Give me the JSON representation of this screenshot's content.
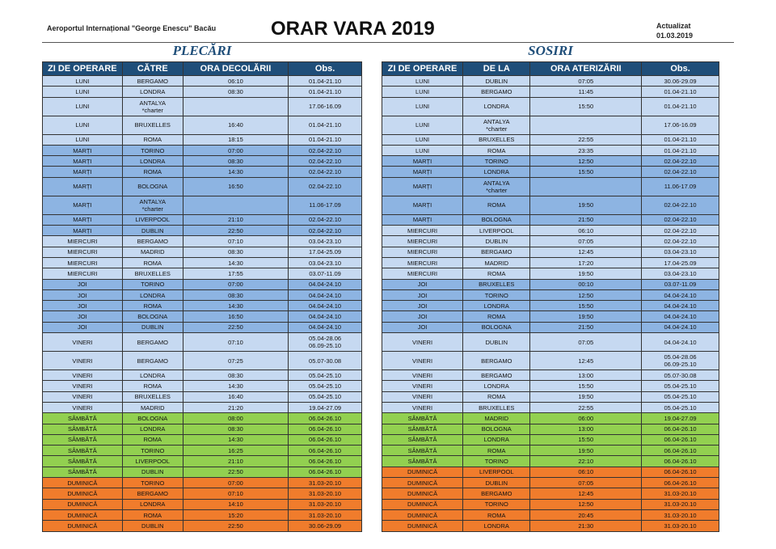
{
  "header": {
    "airport": "Aeroportul Internațional \"George Enescu\" Bacău",
    "title": "ORAR VARA 2019",
    "updated_label": "Actualizat",
    "updated_date": "01.03.2019"
  },
  "departures": {
    "title": "PLECĂRI",
    "columns": [
      "ZI DE OPERARE",
      "CĂTRE",
      "ORA DECOLĂRII",
      "Obs."
    ],
    "rows": [
      [
        "LUNI",
        "BERGAMO",
        "06:10",
        "01.04-21.10"
      ],
      [
        "LUNI",
        "LONDRA",
        "08:30",
        "01.04-21.10"
      ],
      [
        "LUNI",
        "ANTALYA\n*charter",
        null,
        "17.06-16.09"
      ],
      [
        "LUNI",
        "BRUXELLES",
        "16:40",
        "01.04-21.10"
      ],
      [
        "LUNI",
        "ROMA",
        "18:15",
        "01.04-21.10"
      ],
      [
        "MARȚI",
        "TORINO",
        "07:00",
        "02.04-22.10"
      ],
      [
        "MARȚI",
        "LONDRA",
        "08:30",
        "02.04-22.10"
      ],
      [
        "MARȚI",
        "ROMA",
        "14:30",
        "02.04-22.10"
      ],
      [
        "MARȚI",
        "BOLOGNA",
        "16:50",
        "02.04-22.10"
      ],
      [
        "MARȚI",
        "ANTALYA\n*charter",
        null,
        "11.06-17.09"
      ],
      [
        "MARȚI",
        "LIVERPOOL",
        "21:10",
        "02.04-22.10"
      ],
      [
        "MARȚI",
        "DUBLIN",
        "22:50",
        "02.04-22.10"
      ],
      [
        "MIERCURI",
        "BERGAMO",
        "07:10",
        "03.04-23.10"
      ],
      [
        "MIERCURI",
        "MADRID",
        "08:30",
        "17.04-25.09"
      ],
      [
        "MIERCURI",
        "ROMA",
        "14:30",
        "03.04-23.10"
      ],
      [
        "MIERCURI",
        "BRUXELLES",
        "17:55",
        "03.07-11.09"
      ],
      [
        "JOI",
        "TORINO",
        "07:00",
        "04.04-24.10"
      ],
      [
        "JOI",
        "LONDRA",
        "08:30",
        "04.04-24.10"
      ],
      [
        "JOI",
        "ROMA",
        "14:30",
        "04.04-24.10"
      ],
      [
        "JOI",
        "BOLOGNA",
        "16:50",
        "04.04-24.10"
      ],
      [
        "JOI",
        "DUBLIN",
        "22:50",
        "04.04-24.10"
      ],
      [
        "VINERI",
        "BERGAMO",
        "07:10",
        "05.04-28.06\n06.09-25.10"
      ],
      [
        "VINERI",
        "BERGAMO",
        "07:25",
        "05.07-30.08"
      ],
      [
        "VINERI",
        "LONDRA",
        "08:30",
        "05.04-25.10"
      ],
      [
        "VINERI",
        "ROMA",
        "14:30",
        "05.04-25.10"
      ],
      [
        "VINERI",
        "BRUXELLES",
        "16:40",
        "05.04-25.10"
      ],
      [
        "VINERI",
        "MADRID",
        "21:20",
        "19.04-27.09"
      ],
      [
        "SÂMBĂTĂ",
        "BOLOGNA",
        "08:00",
        "06.04-26.10"
      ],
      [
        "SÂMBĂTĂ",
        "LONDRA",
        "08:30",
        "06.04-26.10"
      ],
      [
        "SÂMBĂTĂ",
        "ROMA",
        "14:30",
        "06.04-26.10"
      ],
      [
        "SÂMBĂTĂ",
        "TORINO",
        "16:25",
        "06.04-26.10"
      ],
      [
        "SÂMBĂTĂ",
        "LIVERPOOL",
        "21:10",
        "06.04-26.10"
      ],
      [
        "SÂMBĂTĂ",
        "DUBLIN",
        "22:50",
        "06.04-26.10"
      ],
      [
        "DUMINICĂ",
        "TORINO",
        "07:00",
        "31.03-20.10"
      ],
      [
        "DUMINICĂ",
        "BERGAMO",
        "07:10",
        "31.03-20.10"
      ],
      [
        "DUMINICĂ",
        "LONDRA",
        "14:10",
        "31.03-20.10"
      ],
      [
        "DUMINICĂ",
        "ROMA",
        "15:20",
        "31.03-20.10"
      ],
      [
        "DUMINICĂ",
        "DUBLIN",
        "22:50",
        "30.06-29.09"
      ]
    ]
  },
  "arrivals": {
    "title": "SOSIRI",
    "columns": [
      "ZI DE OPERARE",
      "DE LA",
      "ORA ATERIZĂRII",
      "Obs."
    ],
    "rows": [
      [
        "LUNI",
        "DUBLIN",
        "07:05",
        "30.06-29.09"
      ],
      [
        "LUNI",
        "BERGAMO",
        "11:45",
        "01.04-21.10"
      ],
      [
        "LUNI",
        "LONDRA",
        "15:50",
        "01.04-21.10"
      ],
      [
        "LUNI",
        "ANTALYA\n*charter",
        null,
        "17.06-16.09"
      ],
      [
        "LUNI",
        "BRUXELLES",
        "22:55",
        "01.04-21.10"
      ],
      [
        "LUNI",
        "ROMA",
        "23:35",
        "01.04-21.10"
      ],
      [
        "MARȚI",
        "TORINO",
        "12:50",
        "02.04-22.10"
      ],
      [
        "MARȚI",
        "LONDRA",
        "15:50",
        "02.04-22.10"
      ],
      [
        "MARȚI",
        "ANTALYA\n*charter",
        null,
        "11.06-17.09"
      ],
      [
        "MARȚI",
        "ROMA",
        "19:50",
        "02.04-22.10"
      ],
      [
        "MARȚI",
        "BOLOGNA",
        "21:50",
        "02.04-22.10"
      ],
      [
        "MIERCURI",
        "LIVERPOOL",
        "06:10",
        "02.04-22.10"
      ],
      [
        "MIERCURI",
        "DUBLIN",
        "07:05",
        "02.04-22.10"
      ],
      [
        "MIERCURI",
        "BERGAMO",
        "12:45",
        "03.04-23.10"
      ],
      [
        "MIERCURI",
        "MADRID",
        "17:20",
        "17.04-25.09"
      ],
      [
        "MIERCURI",
        "ROMA",
        "19:50",
        "03.04-23.10"
      ],
      [
        "JOI",
        "BRUXELLES",
        "00:10",
        "03.07-11.09"
      ],
      [
        "JOI",
        "TORINO",
        "12:50",
        "04.04-24.10"
      ],
      [
        "JOI",
        "LONDRA",
        "15:50",
        "04.04-24.10"
      ],
      [
        "JOI",
        "ROMA",
        "19:50",
        "04.04-24.10"
      ],
      [
        "JOI",
        "BOLOGNA",
        "21:50",
        "04.04-24.10"
      ],
      [
        "VINERI",
        "DUBLIN",
        "07:05",
        "04.04-24.10"
      ],
      [
        "VINERI",
        "BERGAMO",
        "12:45",
        "05.04-28.06\n06.09-25.10"
      ],
      [
        "VINERI",
        "BERGAMO",
        "13:00",
        "05.07-30.08"
      ],
      [
        "VINERI",
        "LONDRA",
        "15:50",
        "05.04-25.10"
      ],
      [
        "VINERI",
        "ROMA",
        "19:50",
        "05.04-25.10"
      ],
      [
        "VINERI",
        "BRUXELLES",
        "22:55",
        "05.04-25.10"
      ],
      [
        "SÂMBĂTĂ",
        "MADRID",
        "06:00",
        "19.04-27.09"
      ],
      [
        "SÂMBĂTĂ",
        "BOLOGNA",
        "13:00",
        "06.04-26.10"
      ],
      [
        "SÂMBĂTĂ",
        "LONDRA",
        "15:50",
        "06.04-26.10"
      ],
      [
        "SÂMBĂTĂ",
        "ROMA",
        "19:50",
        "06.04-26.10"
      ],
      [
        "SÂMBĂTĂ",
        "TORINO",
        "22:10",
        "06.04-26.10"
      ],
      [
        "DUMINICĂ",
        "LIVERPOOL",
        "06:10",
        "06.04-26.10"
      ],
      [
        "DUMINICĂ",
        "DUBLIN",
        "07:05",
        "06.04-26.10"
      ],
      [
        "DUMINICĂ",
        "BERGAMO",
        "12:45",
        "31.03-20.10"
      ],
      [
        "DUMINICĂ",
        "TORINO",
        "12:50",
        "31.03-20.10"
      ],
      [
        "DUMINICĂ",
        "ROMA",
        "20:45",
        "31.03-20.10"
      ],
      [
        "DUMINICĂ",
        "LONDRA",
        "21:30",
        "31.03-20.10"
      ]
    ]
  }
}
